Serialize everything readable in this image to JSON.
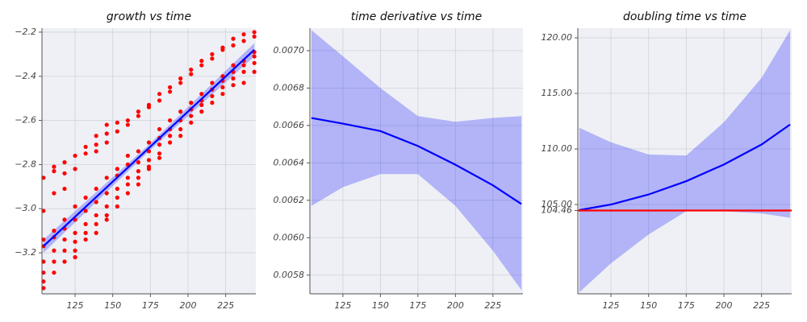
{
  "chart_data": [
    {
      "type": "scatter",
      "title": "growth vs time",
      "grid": true,
      "xlim": [
        103,
        245
      ],
      "xticks": [
        125,
        150,
        175,
        200,
        225
      ],
      "ylim": [
        -3.386,
        -2.182
      ],
      "yticks": [
        {
          "value": -3.2,
          "label": "−3.2"
        },
        {
          "value": -3.0,
          "label": "−3.0"
        },
        {
          "value": -2.8,
          "label": "−2.8"
        },
        {
          "value": -2.6,
          "label": "−2.6"
        },
        {
          "value": -2.4,
          "label": "−2.4"
        },
        {
          "value": -2.2,
          "label": "−2.2"
        }
      ],
      "series": [
        {
          "type": "band",
          "color": "#0000ff",
          "x": [
            104,
            174,
            244
          ],
          "lower": [
            -3.2,
            -2.74,
            -2.31
          ],
          "upper": [
            -3.14,
            -2.71,
            -2.25
          ]
        },
        {
          "type": "scatter",
          "color": "#ff0000",
          "x": [
            104,
            104,
            104,
            104,
            104,
            104,
            104,
            104,
            111,
            111,
            111,
            111,
            111,
            111,
            111,
            111,
            118,
            118,
            118,
            118,
            118,
            118,
            118,
            118,
            125,
            125,
            125,
            125,
            125,
            125,
            125,
            125,
            132,
            132,
            132,
            132,
            132,
            132,
            132,
            139,
            139,
            139,
            139,
            139,
            139,
            139,
            139,
            146,
            146,
            146,
            146,
            146,
            146,
            146,
            146,
            153,
            153,
            153,
            153,
            153,
            153,
            153,
            160,
            160,
            160,
            160,
            160,
            160,
            160,
            167,
            167,
            167,
            167,
            167,
            167,
            167,
            174,
            174,
            174,
            174,
            174,
            174,
            174,
            181,
            181,
            181,
            181,
            181,
            181,
            181,
            188,
            188,
            188,
            188,
            188,
            188,
            195,
            195,
            195,
            195,
            195,
            195,
            202,
            202,
            202,
            202,
            202,
            202,
            209,
            209,
            209,
            209,
            209,
            209,
            216,
            216,
            216,
            216,
            216,
            216,
            223,
            223,
            223,
            223,
            223,
            223,
            230,
            230,
            230,
            230,
            230,
            230,
            237,
            237,
            237,
            237,
            237,
            237,
            244,
            244,
            244,
            244,
            244,
            244
          ],
          "values": [
            -2.86,
            -3.01,
            -3.14,
            -3.17,
            -3.24,
            -3.29,
            -3.33,
            -3.36,
            -2.81,
            -2.83,
            -2.93,
            -3.1,
            -3.13,
            -3.19,
            -3.24,
            -3.29,
            -2.79,
            -2.84,
            -2.91,
            -3.05,
            -3.09,
            -3.14,
            -3.19,
            -3.24,
            -2.76,
            -2.82,
            -2.99,
            -3.05,
            -3.11,
            -3.15,
            -3.19,
            -3.22,
            -2.72,
            -2.75,
            -2.95,
            -3.01,
            -3.07,
            -3.11,
            -3.14,
            -2.67,
            -2.71,
            -2.74,
            -2.91,
            -2.97,
            -3.03,
            -3.07,
            -3.11,
            -2.62,
            -2.66,
            -2.7,
            -2.86,
            -2.93,
            -2.99,
            -3.03,
            -3.05,
            -2.61,
            -2.65,
            -2.82,
            -2.85,
            -2.91,
            -2.95,
            -2.99,
            -2.6,
            -2.62,
            -2.76,
            -2.8,
            -2.86,
            -2.89,
            -2.93,
            -2.56,
            -2.58,
            -2.74,
            -2.79,
            -2.83,
            -2.86,
            -2.89,
            -2.53,
            -2.54,
            -2.7,
            -2.74,
            -2.78,
            -2.81,
            -2.82,
            -2.48,
            -2.51,
            -2.64,
            -2.68,
            -2.71,
            -2.75,
            -2.77,
            -2.45,
            -2.47,
            -2.6,
            -2.64,
            -2.67,
            -2.7,
            -2.41,
            -2.43,
            -2.56,
            -2.6,
            -2.64,
            -2.67,
            -2.37,
            -2.39,
            -2.52,
            -2.55,
            -2.58,
            -2.61,
            -2.33,
            -2.35,
            -2.48,
            -2.51,
            -2.53,
            -2.56,
            -2.3,
            -2.32,
            -2.43,
            -2.46,
            -2.49,
            -2.52,
            -2.27,
            -2.28,
            -2.4,
            -2.42,
            -2.45,
            -2.48,
            -2.23,
            -2.26,
            -2.35,
            -2.38,
            -2.41,
            -2.44,
            -2.21,
            -2.24,
            -2.33,
            -2.35,
            -2.38,
            -2.43,
            -2.2,
            -2.22,
            -2.29,
            -2.31,
            -2.34,
            -2.38
          ]
        },
        {
          "type": "line",
          "color": "#0000ff",
          "x": [
            104,
            244
          ],
          "values": [
            -3.17,
            -2.28
          ]
        }
      ]
    },
    {
      "type": "line",
      "title": "time derivative vs time",
      "grid": true,
      "xlim": [
        103,
        245
      ],
      "xticks": [
        125,
        150,
        175,
        200,
        225
      ],
      "ylim": [
        0.0057,
        0.00712
      ],
      "yticks": [
        {
          "value": 0.0058,
          "label": "0.0058"
        },
        {
          "value": 0.006,
          "label": "0.0060"
        },
        {
          "value": 0.0062,
          "label": "0.0062"
        },
        {
          "value": 0.0064,
          "label": "0.0064"
        },
        {
          "value": 0.0066,
          "label": "0.0066"
        },
        {
          "value": 0.0068,
          "label": "0.0068"
        },
        {
          "value": 0.007,
          "label": "0.0070"
        }
      ],
      "series": [
        {
          "type": "band",
          "color": "#0000ff",
          "x": [
            104,
            125,
            150,
            175,
            200,
            225,
            244
          ],
          "lower": [
            0.00617,
            0.00627,
            0.00634,
            0.00634,
            0.00617,
            0.00593,
            0.00572
          ],
          "upper": [
            0.00711,
            0.00697,
            0.0068,
            0.00665,
            0.00662,
            0.00664,
            0.00665
          ]
        },
        {
          "type": "line",
          "color": "#0000ff",
          "x": [
            104,
            125,
            150,
            175,
            200,
            225,
            244
          ],
          "values": [
            0.00664,
            0.00661,
            0.00657,
            0.00649,
            0.00639,
            0.00628,
            0.00618
          ]
        }
      ]
    },
    {
      "type": "line",
      "title": "doubling time vs time",
      "grid": true,
      "xlim": [
        103,
        245
      ],
      "xticks": [
        125,
        150,
        175,
        200,
        225
      ],
      "ylim": [
        96.96,
        120.87
      ],
      "yticks": [
        {
          "value": 104.46,
          "label": "104.46"
        },
        {
          "value": 105,
          "label": "105.00"
        },
        {
          "value": 110,
          "label": "110.00"
        },
        {
          "value": 115,
          "label": "115.00"
        },
        {
          "value": 120,
          "label": "120.00"
        }
      ],
      "hline": 104.46,
      "hline_color": "#ff0000",
      "series": [
        {
          "type": "band",
          "color": "#0000ff",
          "x": [
            104,
            125,
            150,
            175,
            200,
            225,
            244
          ],
          "lower": [
            97.1,
            99.7,
            102.3,
            104.4,
            104.4,
            104.2,
            103.8
          ],
          "upper": [
            111.9,
            110.6,
            109.5,
            109.4,
            112.4,
            116.4,
            120.7
          ]
        },
        {
          "type": "line",
          "color": "#0000ff",
          "x": [
            104,
            125,
            150,
            175,
            200,
            225,
            244
          ],
          "values": [
            104.5,
            105.0,
            105.9,
            107.1,
            108.6,
            110.4,
            112.2
          ]
        }
      ]
    }
  ]
}
